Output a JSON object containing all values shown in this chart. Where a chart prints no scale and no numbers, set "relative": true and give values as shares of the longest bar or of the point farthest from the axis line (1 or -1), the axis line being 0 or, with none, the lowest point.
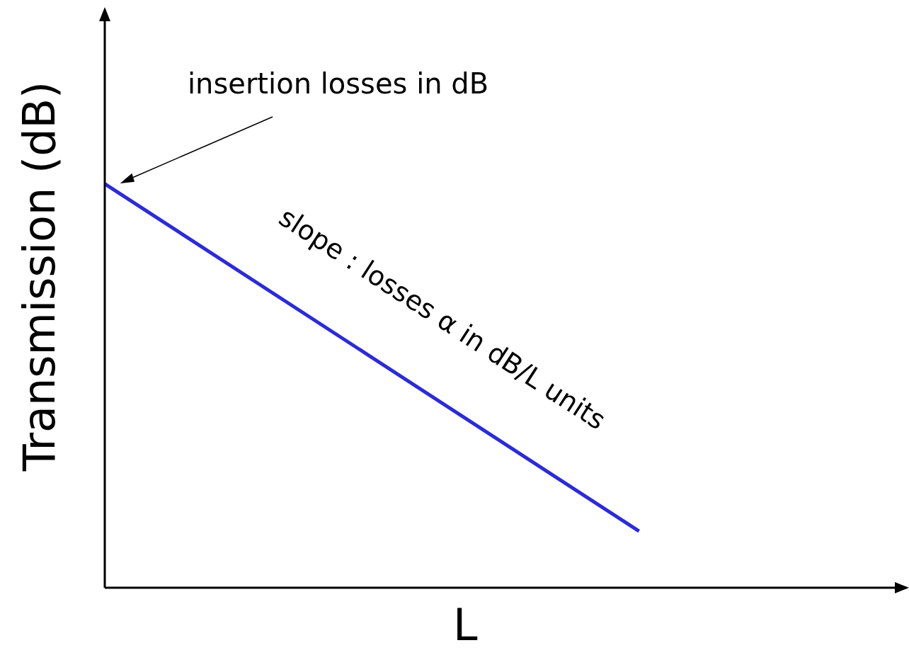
{
  "chart_data": {
    "type": "line",
    "relative": true,
    "xlabel": "L",
    "ylabel": "Transmission (dB)",
    "categories": [
      null,
      null,
      null,
      null
    ],
    "series": [
      {
        "color": "#2b2bd9",
        "values": [
          1,
          0.57,
          0.14,
          null
        ]
      }
    ],
    "annotations": [
      "insertion losses in dB",
      "slope : losses α in dB/L units"
    ],
    "grid": false,
    "legend": false,
    "marker": "none",
    "line_style": "solid"
  }
}
